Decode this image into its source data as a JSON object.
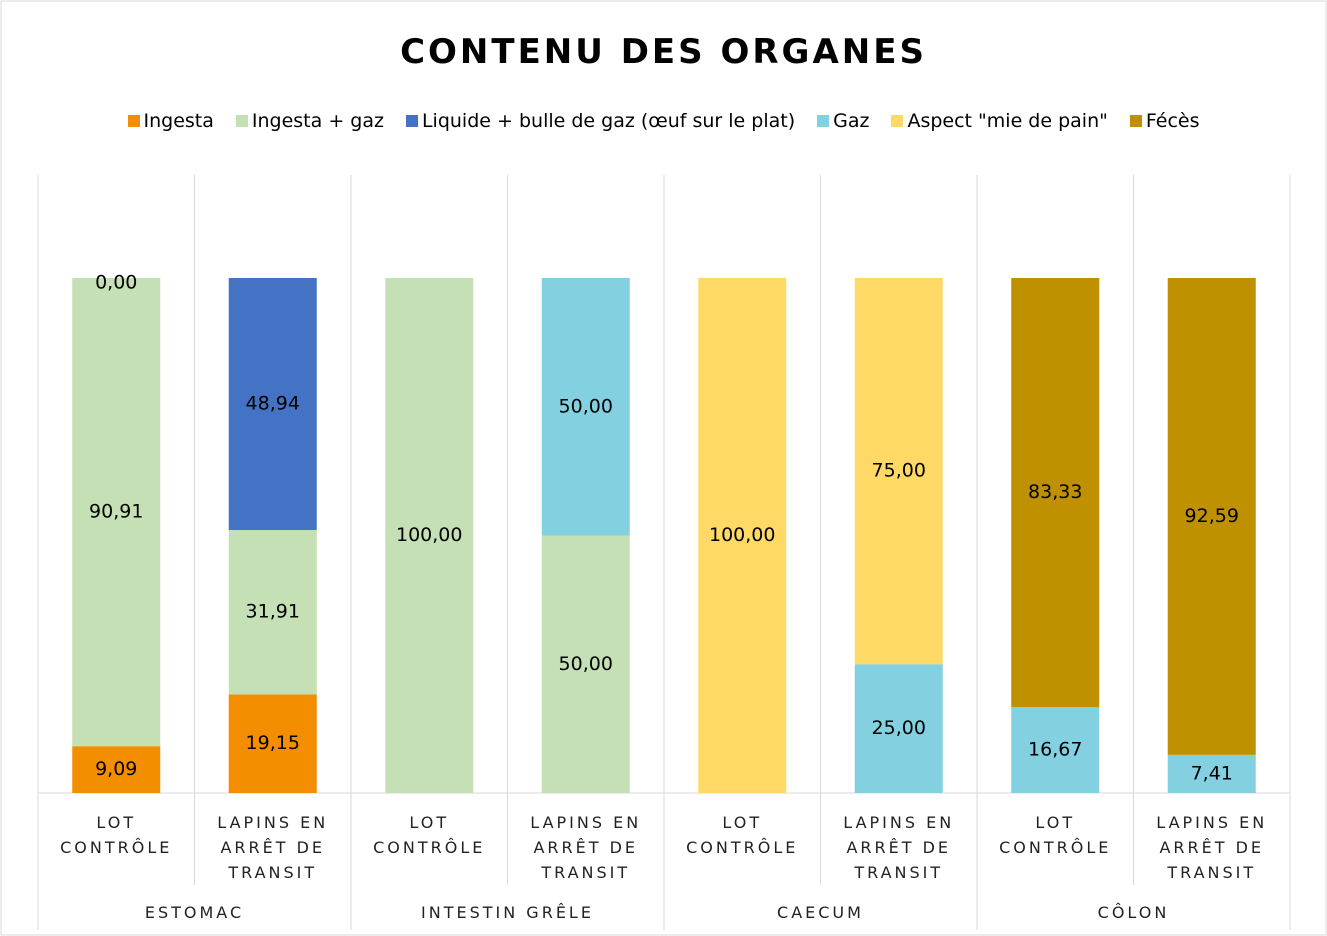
{
  "chart_data": {
    "type": "stacked_bar",
    "title": "CONTENU DES ORGANES",
    "categories": [
      "LOT CONTRÔLE",
      "LAPINS EN ARRÊT DE TRANSIT",
      "LOT CONTRÔLE",
      "LAPINS EN ARRÊT DE TRANSIT",
      "LOT CONTRÔLE",
      "LAPINS EN ARRÊT DE TRANSIT",
      "LOT CONTRÔLE",
      "LAPINS EN ARRÊT DE TRANSIT"
    ],
    "groups": [
      "ESTOMAC",
      "INTESTIN GRÊLE",
      "CAECUM",
      "CÔLON"
    ],
    "ylim": [
      0,
      100
    ],
    "series": [
      {
        "name": "Ingesta",
        "color": "#f28e00",
        "values": [
          9.09,
          19.15,
          null,
          null,
          null,
          null,
          null,
          null
        ],
        "value_labels": [
          "9,09",
          "19,15",
          null,
          null,
          null,
          null,
          null,
          null
        ]
      },
      {
        "name": "Ingesta + gaz",
        "color": "#c5e0b4",
        "values": [
          90.91,
          31.91,
          100,
          50,
          null,
          null,
          null,
          null
        ],
        "value_labels": [
          "90,91",
          "31,91",
          "100,00",
          "50,00",
          null,
          null,
          null,
          null
        ]
      },
      {
        "name": "Liquide + bulle de gaz (œuf sur le plat)",
        "color": "#4472c4",
        "values": [
          0,
          48.94,
          null,
          null,
          null,
          null,
          null,
          null
        ],
        "value_labels": [
          "0,00",
          "48,94",
          null,
          null,
          null,
          null,
          null,
          null
        ]
      },
      {
        "name": "Gaz",
        "color": "#83d0e0",
        "values": [
          null,
          null,
          null,
          50,
          null,
          25,
          16.67,
          7.41
        ],
        "value_labels": [
          null,
          null,
          null,
          "50,00",
          null,
          "25,00",
          "16,67",
          "7,41"
        ]
      },
      {
        "name": "Aspect \"mie de pain\"",
        "color": "#ffd966",
        "values": [
          null,
          null,
          null,
          null,
          100,
          75,
          null,
          null
        ],
        "value_labels": [
          null,
          null,
          null,
          null,
          "100,00",
          "75,00",
          null,
          null
        ]
      },
      {
        "name": "Fécès",
        "color": "#bf9000",
        "values": [
          null,
          null,
          null,
          null,
          null,
          null,
          83.33,
          92.59
        ],
        "value_labels": [
          null,
          null,
          null,
          null,
          null,
          null,
          "83,33",
          "92,59"
        ]
      }
    ]
  }
}
